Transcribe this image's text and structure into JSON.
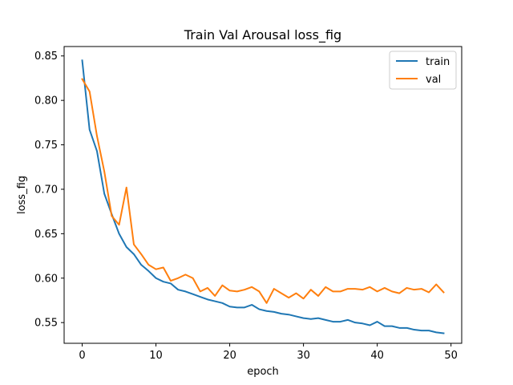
{
  "chart_data": {
    "type": "line",
    "title": "Train Val Arousal loss_fig",
    "xlabel": "epoch",
    "ylabel": "loss_fig",
    "xlim": [
      -2.45,
      51.45
    ],
    "ylim": [
      0.5267,
      0.8606
    ],
    "x_ticks": [
      0,
      10,
      20,
      30,
      40,
      50
    ],
    "y_ticks": [
      0.55,
      0.6,
      0.65,
      0.7,
      0.75,
      0.8,
      0.85
    ],
    "x_tick_labels": [
      "0",
      "10",
      "20",
      "30",
      "40",
      "50"
    ],
    "y_tick_labels": [
      "0.55",
      "0.60",
      "0.65",
      "0.70",
      "0.75",
      "0.80",
      "0.85"
    ],
    "grid": false,
    "legend_position": "top-right",
    "x": [
      0,
      1,
      2,
      3,
      4,
      5,
      6,
      7,
      8,
      9,
      10,
      11,
      12,
      13,
      14,
      15,
      16,
      17,
      18,
      19,
      20,
      21,
      22,
      23,
      24,
      25,
      26,
      27,
      28,
      29,
      30,
      31,
      32,
      33,
      34,
      35,
      36,
      37,
      38,
      39,
      40,
      41,
      42,
      43,
      44,
      45,
      46,
      47,
      48,
      49
    ],
    "series": [
      {
        "name": "train",
        "color": "#1f77b4",
        "values": [
          0.845,
          0.767,
          0.743,
          0.695,
          0.672,
          0.65,
          0.635,
          0.627,
          0.615,
          0.608,
          0.6,
          0.596,
          0.594,
          0.587,
          0.585,
          0.582,
          0.579,
          0.576,
          0.574,
          0.572,
          0.568,
          0.567,
          0.567,
          0.57,
          0.565,
          0.563,
          0.562,
          0.56,
          0.559,
          0.557,
          0.555,
          0.554,
          0.555,
          0.553,
          0.551,
          0.551,
          0.553,
          0.55,
          0.549,
          0.547,
          0.551,
          0.546,
          0.546,
          0.544,
          0.544,
          0.542,
          0.541,
          0.541,
          0.539,
          0.538
        ]
      },
      {
        "name": "val",
        "color": "#ff7f0e",
        "values": [
          0.824,
          0.81,
          0.76,
          0.72,
          0.67,
          0.66,
          0.702,
          0.638,
          0.627,
          0.615,
          0.61,
          0.612,
          0.597,
          0.6,
          0.604,
          0.6,
          0.585,
          0.589,
          0.58,
          0.592,
          0.586,
          0.585,
          0.587,
          0.59,
          0.585,
          0.572,
          0.588,
          0.583,
          0.578,
          0.583,
          0.577,
          0.587,
          0.58,
          0.59,
          0.585,
          0.585,
          0.588,
          0.588,
          0.587,
          0.59,
          0.585,
          0.589,
          0.585,
          0.583,
          0.589,
          0.587,
          0.588,
          0.584,
          0.593,
          0.584
        ]
      }
    ]
  }
}
